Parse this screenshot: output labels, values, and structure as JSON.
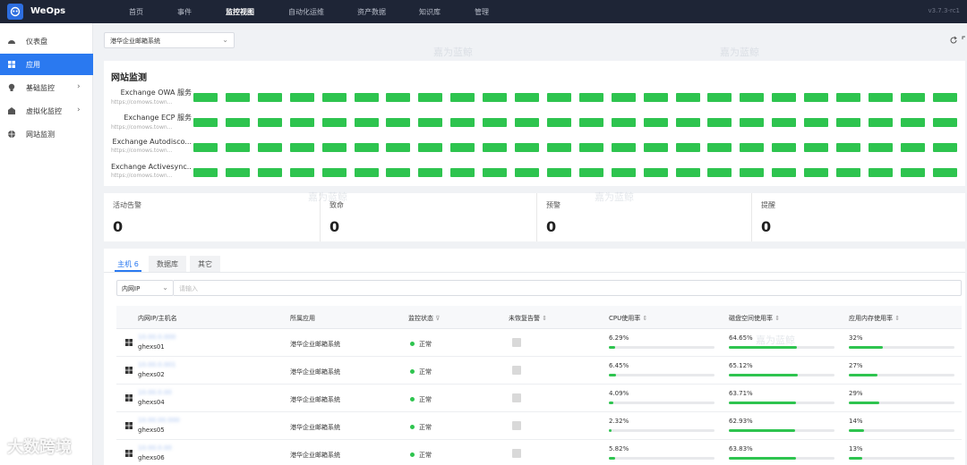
{
  "app": {
    "brand": "WeOps",
    "version": "v3.7.3-rc1"
  },
  "nav": [
    {
      "label": "首页"
    },
    {
      "label": "事件"
    },
    {
      "label": "监控视图",
      "active": true
    },
    {
      "label": "自动化运维"
    },
    {
      "label": "资产数据"
    },
    {
      "label": "知识库"
    },
    {
      "label": "管理"
    }
  ],
  "sidebar": {
    "items": [
      {
        "label": "仪表盘",
        "icon": "dashboard-icon"
      },
      {
        "label": "应用",
        "icon": "app-grid-icon",
        "active": true
      },
      {
        "label": "基础监控",
        "icon": "bulb-icon",
        "chevron": true
      },
      {
        "label": "虚拟化监控",
        "icon": "virtual-icon",
        "chevron": true
      },
      {
        "label": "网站监测",
        "icon": "globe-icon"
      }
    ]
  },
  "app_selector": {
    "value": "港华企业邮箱系统"
  },
  "web_monitor": {
    "title": "网站监测",
    "services": [
      {
        "name": "Exchange OWA 服务",
        "url": "https://comows.town..."
      },
      {
        "name": "Exchange ECP 服务",
        "url": "https://comows.town..."
      },
      {
        "name": "Exchange Autodisco...",
        "url": "https://comows.town..."
      },
      {
        "name": "Exchange Activesync...",
        "url": "https://comows.town..."
      }
    ],
    "bar_count": 24,
    "bar_color": "#2ec44f"
  },
  "stats": [
    {
      "label": "活动告警",
      "value": "0"
    },
    {
      "label": "致命",
      "value": "0"
    },
    {
      "label": "预警",
      "value": "0"
    },
    {
      "label": "提醒",
      "value": "0"
    }
  ],
  "tabs": [
    {
      "label": "主机 6",
      "active": true
    },
    {
      "label": "数据库"
    },
    {
      "label": "其它"
    }
  ],
  "filter": {
    "field": "内网IP",
    "placeholder": "请输入"
  },
  "table": {
    "headers": [
      "内网IP/主机名",
      "所属应用",
      "监控状态",
      "未恢复告警",
      "CPU使用率",
      "磁盘空间使用率",
      "应用内存使用率"
    ],
    "rows": [
      {
        "ip": "10.00.0.000",
        "host": "ghexs01",
        "app": "港华企业邮箱系统",
        "status": "正常",
        "cpu": "6.29%",
        "cpu_v": 6.29,
        "disk": "64.65%",
        "disk_v": 64.65,
        "mem": "32%",
        "mem_v": 32
      },
      {
        "ip": "10.00.0.001",
        "host": "ghexs02",
        "app": "港华企业邮箱系统",
        "status": "正常",
        "cpu": "6.45%",
        "cpu_v": 6.45,
        "disk": "65.12%",
        "disk_v": 65.12,
        "mem": "27%",
        "mem_v": 27
      },
      {
        "ip": "10.00.0.00",
        "host": "ghexs04",
        "app": "港华企业邮箱系统",
        "status": "正常",
        "cpu": "4.09%",
        "cpu_v": 4.09,
        "disk": "63.71%",
        "disk_v": 63.71,
        "mem": "29%",
        "mem_v": 29
      },
      {
        "ip": "10.00.00.000",
        "host": "ghexs05",
        "app": "港华企业邮箱系统",
        "status": "正常",
        "cpu": "2.32%",
        "cpu_v": 2.32,
        "disk": "62.93%",
        "disk_v": 62.93,
        "mem": "14%",
        "mem_v": 14
      },
      {
        "ip": "10.00.0.00",
        "host": "ghexs06",
        "app": "港华企业邮箱系统",
        "status": "正常",
        "cpu": "5.82%",
        "cpu_v": 5.82,
        "disk": "63.83%",
        "disk_v": 63.83,
        "mem": "13%",
        "mem_v": 13
      }
    ]
  },
  "watermark": "嘉为蓝鲸",
  "corner_watermark": "大数跨境"
}
